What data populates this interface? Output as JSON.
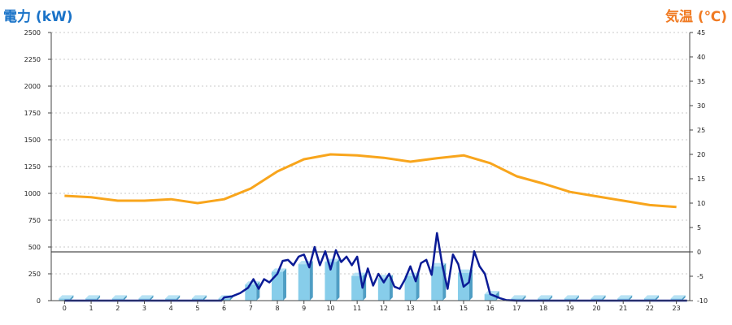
{
  "chart_data": {
    "type": "bar+line",
    "left_axis_title": "電力 (kW)",
    "right_axis_title": "気温 (℃)",
    "x_ticks": [
      "0",
      "1",
      "2",
      "3",
      "4",
      "5",
      "6",
      "7",
      "8",
      "9",
      "10",
      "11",
      "12",
      "13",
      "14",
      "15",
      "16",
      "17",
      "18",
      "19",
      "20",
      "21",
      "22",
      "23"
    ],
    "y_left": {
      "min": 0,
      "max": 2500,
      "ticks": [
        0,
        250,
        500,
        750,
        1000,
        1250,
        1500,
        1750,
        2000,
        2250,
        2500
      ]
    },
    "y_right": {
      "min": -10,
      "max": 45,
      "ticks": [
        -10,
        -5,
        0,
        5,
        10,
        15,
        20,
        25,
        30,
        35,
        40,
        45
      ]
    },
    "grid": true,
    "reference_line_temp": 0,
    "colors": {
      "bars": "#87cdea",
      "bars_dark": "#4f9ec4",
      "power_line": "#0b1b96",
      "temp_line": "#f8a51c",
      "left_title": "#1a73c8",
      "right_title": "#f07a22"
    },
    "bars": {
      "hours": [
        0,
        1,
        2,
        3,
        4,
        5,
        6,
        7,
        8,
        9,
        10,
        11,
        12,
        13,
        14,
        15,
        16,
        17,
        18,
        19,
        20,
        21,
        22,
        23
      ],
      "values": [
        20,
        20,
        20,
        20,
        20,
        20,
        20,
        150,
        270,
        340,
        360,
        230,
        210,
        230,
        320,
        260,
        60,
        20,
        20,
        20,
        20,
        20,
        20,
        20
      ]
    },
    "power_line": {
      "x": [
        0,
        2,
        4,
        5.9,
        6,
        6.3,
        6.6,
        6.9,
        7.1,
        7.3,
        7.5,
        7.7,
        8,
        8.2,
        8.4,
        8.6,
        8.8,
        9,
        9.2,
        9.4,
        9.6,
        9.8,
        10,
        10.2,
        10.4,
        10.6,
        10.8,
        11,
        11.2,
        11.4,
        11.6,
        11.8,
        12,
        12.2,
        12.4,
        12.6,
        12.8,
        13,
        13.2,
        13.4,
        13.6,
        13.8,
        14,
        14.2,
        14.4,
        14.6,
        14.8,
        15,
        15.2,
        15.4,
        15.6,
        15.8,
        16,
        16.2,
        16.4,
        16.6,
        17,
        20,
        23.4
      ],
      "y": [
        0,
        0,
        0,
        0,
        30,
        40,
        70,
        120,
        200,
        110,
        200,
        170,
        250,
        370,
        380,
        330,
        410,
        430,
        310,
        500,
        330,
        460,
        290,
        470,
        360,
        410,
        330,
        410,
        120,
        300,
        140,
        250,
        170,
        250,
        130,
        110,
        200,
        320,
        180,
        350,
        380,
        240,
        630,
        330,
        110,
        430,
        340,
        130,
        170,
        460,
        320,
        250,
        60,
        40,
        20,
        5,
        0,
        0,
        0
      ]
    },
    "temp_line": {
      "hours": [
        0,
        1,
        2,
        3,
        4,
        5,
        6,
        7,
        8,
        9,
        10,
        11,
        12,
        13,
        14,
        15,
        16,
        17,
        18,
        19,
        20,
        21,
        22,
        23
      ],
      "values": [
        11.5,
        11.2,
        10.5,
        10.5,
        10.8,
        10.0,
        10.8,
        13.0,
        16.5,
        19.0,
        20.0,
        19.8,
        19.3,
        18.5,
        19.2,
        19.8,
        18.2,
        15.5,
        14.0,
        12.3,
        11.4,
        10.5,
        9.6,
        9.2
      ]
    }
  }
}
